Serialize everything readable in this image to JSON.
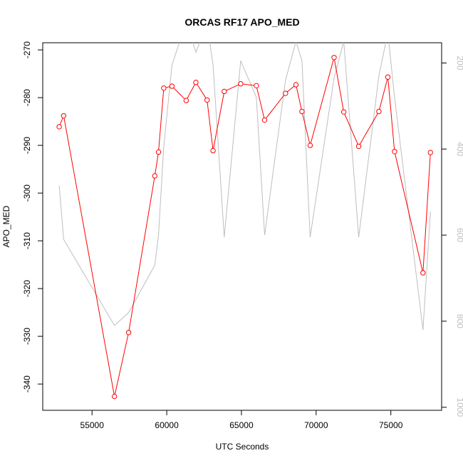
{
  "chart_data": {
    "type": "line",
    "title": "ORCAS RF17 APO_MED",
    "xlabel": "UTC Seconds",
    "ylabel": "APO_MED",
    "xlim": [
      51700,
      78400
    ],
    "ylim": [
      -345.5,
      -268.5
    ],
    "y2lim": [
      1007,
      153
    ],
    "x_ticks": [
      55000,
      60000,
      65000,
      70000,
      75000
    ],
    "y_ticks": [
      -340,
      -330,
      -320,
      -310,
      -300,
      -290,
      -280,
      -270
    ],
    "y2_ticks": [
      200,
      400,
      600,
      800,
      1000
    ],
    "grid": false,
    "colors": {
      "primary": "#ff0000",
      "secondary": "#bebebe",
      "axis": "#000000"
    },
    "series": [
      {
        "axis": "left",
        "color": "#ff0000",
        "marker": "open-circle",
        "x": [
          52800,
          53100,
          56500,
          57450,
          59200,
          59450,
          59800,
          60350,
          61300,
          61950,
          62700,
          63100,
          63850,
          64950,
          66000,
          66550,
          67950,
          68650,
          69050,
          69600,
          71200,
          71850,
          72850,
          74200,
          74800,
          75250,
          77150,
          77650
        ],
        "y": [
          -286.1,
          -283.8,
          -342.6,
          -329.2,
          -296.4,
          -291.4,
          -278.0,
          -277.6,
          -280.6,
          -276.8,
          -280.5,
          -291.1,
          -278.7,
          -277.1,
          -277.5,
          -284.7,
          -279.1,
          -277.3,
          -282.9,
          -290.0,
          -271.6,
          -283.0,
          -290.2,
          -282.9,
          -275.7,
          -291.3,
          -316.7,
          -291.5
        ]
      },
      {
        "axis": "right",
        "color": "#bebebe",
        "marker": "none",
        "x": [
          52800,
          53100,
          56500,
          57450,
          59200,
          59450,
          59800,
          60350,
          61300,
          61950,
          62700,
          63100,
          63850,
          64950,
          66000,
          66550,
          67950,
          68650,
          69050,
          69600,
          71200,
          71850,
          72850,
          74200,
          74800,
          75250,
          77150,
          77650
        ],
        "y": [
          485,
          610,
          810,
          780,
          670,
          600,
          395,
          205,
          105,
          175,
          110,
          205,
          605,
          195,
          280,
          600,
          240,
          150,
          195,
          605,
          235,
          150,
          605,
          230,
          130,
          280,
          820,
          545
        ]
      }
    ]
  }
}
